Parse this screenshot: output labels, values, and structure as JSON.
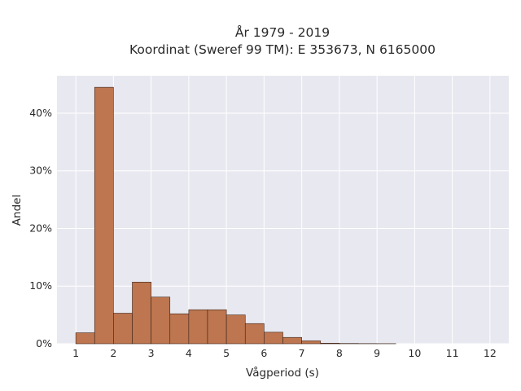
{
  "chart_data": {
    "type": "bar",
    "title_lines": [
      "År 1979 - 2019",
      "Koordinat (Sweref 99 TM): E 353673, N 6165000"
    ],
    "xlabel": "Vågperiod (s)",
    "ylabel": "Andel",
    "xlim": [
      0.5,
      12.5
    ],
    "ylim": [
      0,
      0.465
    ],
    "x_ticks": [
      1,
      2,
      3,
      4,
      5,
      6,
      7,
      8,
      9,
      10,
      11,
      12
    ],
    "y_ticks": [
      0,
      0.1,
      0.2,
      0.3,
      0.4
    ],
    "y_tick_labels": [
      "0%",
      "10%",
      "20%",
      "30%",
      "40%"
    ],
    "grid": true,
    "bin_width": 0.5,
    "bins": [
      {
        "start": 1.0,
        "value": 0.019
      },
      {
        "start": 1.5,
        "value": 0.445
      },
      {
        "start": 2.0,
        "value": 0.053
      },
      {
        "start": 2.5,
        "value": 0.107
      },
      {
        "start": 3.0,
        "value": 0.081
      },
      {
        "start": 3.5,
        "value": 0.052
      },
      {
        "start": 4.0,
        "value": 0.059
      },
      {
        "start": 4.5,
        "value": 0.059
      },
      {
        "start": 5.0,
        "value": 0.05
      },
      {
        "start": 5.5,
        "value": 0.035
      },
      {
        "start": 6.0,
        "value": 0.02
      },
      {
        "start": 6.5,
        "value": 0.011
      },
      {
        "start": 7.0,
        "value": 0.005
      },
      {
        "start": 7.5,
        "value": 0.001
      },
      {
        "start": 8.0,
        "value": 0.0005
      },
      {
        "start": 8.5,
        "value": 0.0003
      },
      {
        "start": 9.0,
        "value": 0.0002
      }
    ],
    "colors": {
      "bar_fill": "#bd7650",
      "bar_edge": "#3d2418",
      "plot_background": "#e8e8f0",
      "grid": "#ffffff"
    }
  }
}
